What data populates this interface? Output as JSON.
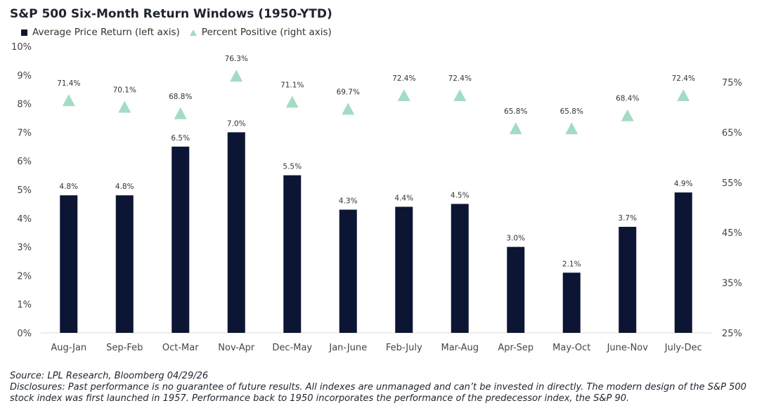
{
  "chart_data": {
    "type": "bar",
    "title": "S&P 500 Six-Month Return Windows (1950-YTD)",
    "legend": [
      {
        "label": "Average Price Return (left axis)",
        "color": "#0c1533",
        "marker": "square"
      },
      {
        "label": "Percent Positive (right axis)",
        "color": "#a3dcc3",
        "marker": "triangle"
      }
    ],
    "categories": [
      "Aug-Jan",
      "Sep-Feb",
      "Oct-Mar",
      "Nov-Apr",
      "Dec-May",
      "Jan-June",
      "Feb-July",
      "Mar-Aug",
      "Apr-Sep",
      "May-Oct",
      "June-Nov",
      "July-Dec"
    ],
    "series": [
      {
        "name": "Average Price Return",
        "axis": "left",
        "type": "bar",
        "color": "#0c1533",
        "values": [
          4.8,
          4.8,
          6.5,
          7.0,
          5.5,
          4.3,
          4.4,
          4.5,
          3.0,
          2.1,
          3.7,
          4.9
        ],
        "labels": [
          "4.8%",
          "4.8%",
          "6.5%",
          "7.0%",
          "5.5%",
          "4.3%",
          "4.4%",
          "4.5%",
          "3.0%",
          "2.1%",
          "3.7%",
          "4.9%"
        ]
      },
      {
        "name": "Percent Positive",
        "axis": "right",
        "type": "scatter",
        "color": "#a3dcc3",
        "values": [
          71.4,
          70.1,
          68.8,
          76.3,
          71.1,
          69.7,
          72.4,
          72.4,
          65.8,
          65.8,
          68.4,
          72.4
        ],
        "labels": [
          "71.4%",
          "70.1%",
          "68.8%",
          "76.3%",
          "71.1%",
          "69.7%",
          "72.4%",
          "72.4%",
          "65.8%",
          "65.8%",
          "68.4%",
          "72.4%"
        ]
      }
    ],
    "y_left": {
      "lim": [
        0,
        10
      ],
      "ticks": [
        "0%",
        "1%",
        "2%",
        "3%",
        "4%",
        "5%",
        "6%",
        "7%",
        "8%",
        "9%",
        "10%"
      ]
    },
    "y_right": {
      "lim": [
        25,
        82.14
      ],
      "tick_values": [
        25,
        35,
        45,
        55,
        65,
        75
      ],
      "ticks": [
        "25%",
        "35%",
        "45%",
        "55%",
        "65%",
        "75%"
      ]
    },
    "grid": false,
    "legend_position": "top-left"
  },
  "footer": {
    "source": "Source: LPL Research, Bloomberg 04/29/26",
    "disclosure_line1": "Disclosures: Past performance is no guarantee of future results. All indexes are unmanaged and can’t be invested in directly. The modern design of the S&P 500",
    "disclosure_line2": "stock index was first launched in 1957. Performance back to 1950 incorporates the performance of the predecessor index, the S&P 90."
  }
}
